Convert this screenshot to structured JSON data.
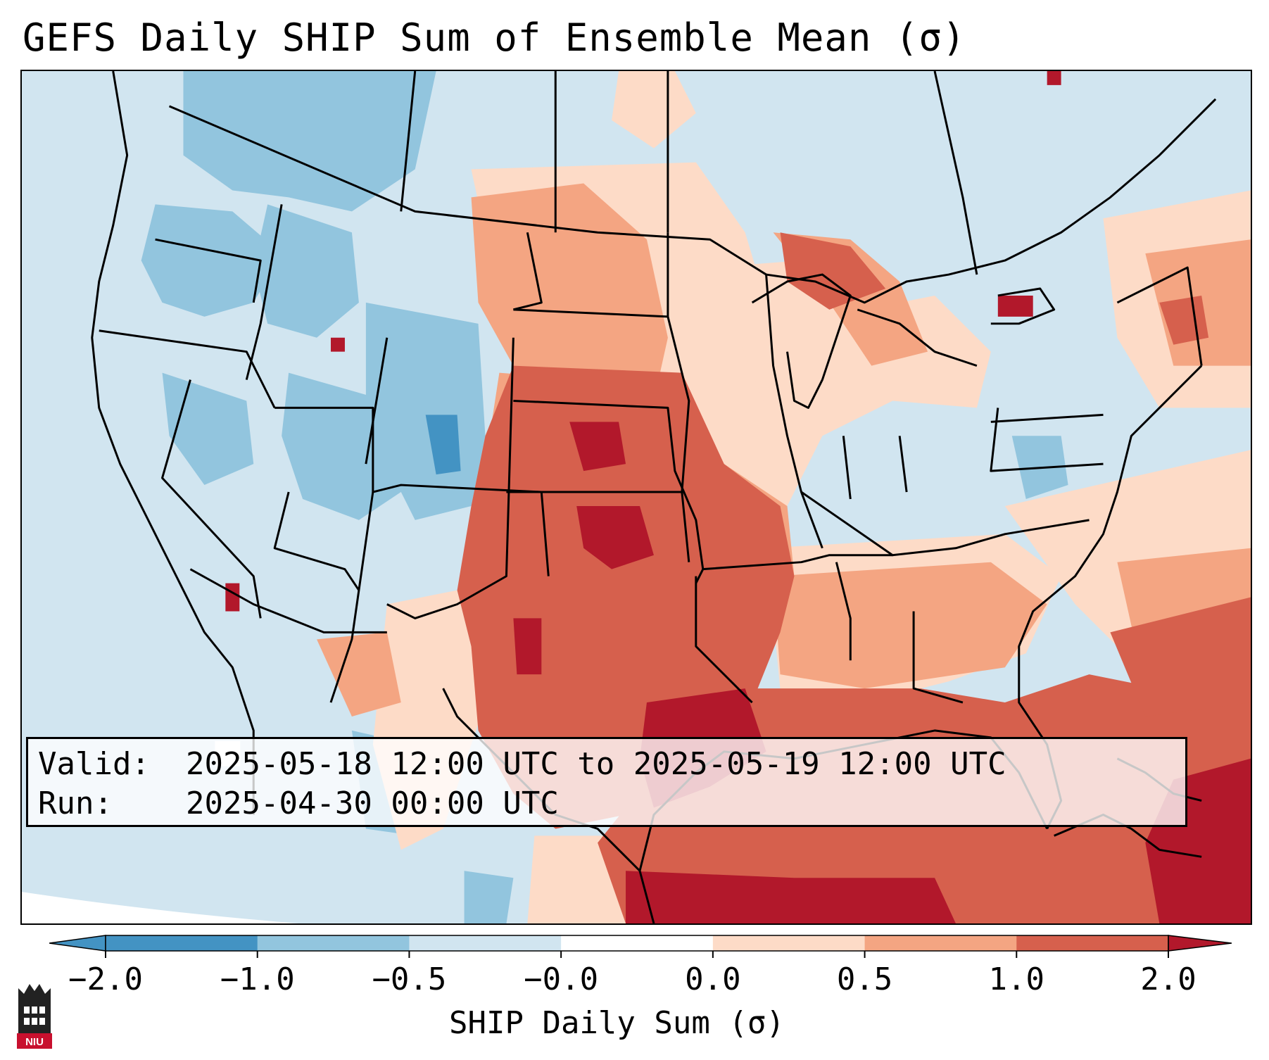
{
  "title": "GEFS Daily SHIP Sum of Ensemble Mean (σ)",
  "info": {
    "valid_label": "Valid:",
    "valid_value": "2025-05-18 12:00 UTC to 2025-05-19 12:00 UTC",
    "run_label": "Run:",
    "run_value": "2025-04-30 00:00 UTC"
  },
  "colorbar": {
    "label": "SHIP Daily Sum (σ)",
    "ticks": [
      "−2.0",
      "−1.0",
      "−0.5",
      "−0.0",
      "0.0",
      "0.5",
      "1.0",
      "2.0"
    ],
    "colors": [
      "#4393c3",
      "#92c5de",
      "#d1e5f0",
      "#ffffff",
      "#fddbc7",
      "#f4a582",
      "#d6604d",
      "#b2182b"
    ],
    "extend": "both"
  },
  "logo": {
    "text": "NIU"
  },
  "map": {
    "projection": "Lambert Conformal (CONUS)",
    "background_color": "#d1e5f0",
    "outside_domain_color": "#ffffff",
    "outlines": "states, coastlines, borders"
  }
}
